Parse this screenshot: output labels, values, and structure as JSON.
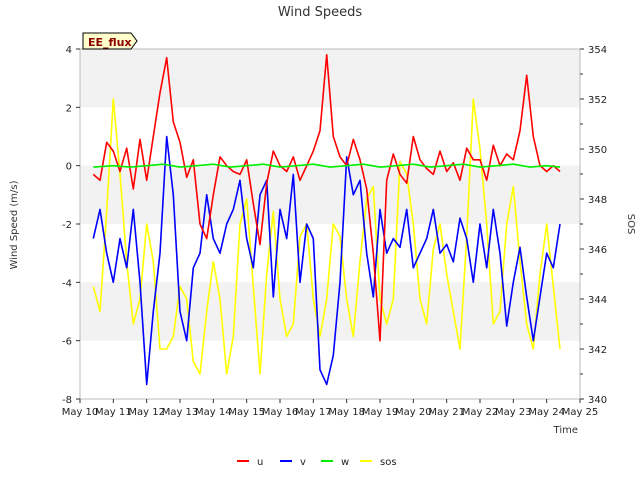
{
  "chart_data": {
    "type": "line",
    "title": "Wind Speeds",
    "badge": "EE_flux",
    "xlabel": "Time",
    "ylabel": "Wind Speed (m/s)",
    "y2label": "SOS",
    "ylim": [
      -8,
      4
    ],
    "y2lim": [
      340,
      354
    ],
    "yticks": [
      -8,
      -6,
      -4,
      -2,
      0,
      2,
      4
    ],
    "y2ticks": [
      340,
      342,
      344,
      346,
      348,
      350,
      352,
      354
    ],
    "x_dates": [
      "May 10",
      "May 11",
      "May 12",
      "May 13",
      "May 14",
      "May 15",
      "May 16",
      "May 17",
      "May 18",
      "May 19",
      "May 20",
      "May 21",
      "May 22",
      "May 23",
      "May 24",
      "May 25"
    ],
    "xlim": [
      10,
      25
    ],
    "grid": "horizontal bands",
    "legend_position": "bottom",
    "colors": {
      "u": "#ff0000",
      "v": "#0000ff",
      "w": "#00ee00",
      "sos": "#ffff00",
      "band": "#f2f2f2",
      "badge_bg": "#ffffcc"
    },
    "series": [
      {
        "name": "u",
        "axis": "left",
        "color": "#ff0000",
        "x": [
          10.4,
          10.6,
          10.8,
          11.0,
          11.2,
          11.4,
          11.6,
          11.8,
          12.0,
          12.2,
          12.4,
          12.6,
          12.8,
          13.0,
          13.2,
          13.4,
          13.6,
          13.8,
          14.0,
          14.2,
          14.4,
          14.6,
          14.8,
          15.0,
          15.2,
          15.4,
          15.6,
          15.8,
          16.0,
          16.2,
          16.4,
          16.6,
          16.8,
          17.0,
          17.2,
          17.4,
          17.6,
          17.8,
          18.0,
          18.2,
          18.4,
          18.6,
          18.8,
          19.0,
          19.2,
          19.4,
          19.6,
          19.8,
          20.0,
          20.2,
          20.4,
          20.6,
          20.8,
          21.0,
          21.2,
          21.4,
          21.6,
          21.8,
          22.0,
          22.2,
          22.4,
          22.6,
          22.8,
          23.0,
          23.2,
          23.4,
          23.6,
          23.8,
          24.0,
          24.2,
          24.4
        ],
        "y": [
          -0.3,
          -0.5,
          0.8,
          0.5,
          -0.2,
          0.6,
          -0.8,
          0.9,
          -0.5,
          1.0,
          2.5,
          3.7,
          1.5,
          0.8,
          -0.4,
          0.2,
          -2.0,
          -2.5,
          -1.0,
          0.3,
          0.0,
          -0.2,
          -0.3,
          0.2,
          -1.3,
          -2.7,
          -0.6,
          0.5,
          0.0,
          -0.2,
          0.3,
          -0.5,
          0.0,
          0.5,
          1.2,
          3.8,
          1.0,
          0.3,
          0.0,
          0.9,
          0.2,
          -0.8,
          -3.0,
          -6.0,
          -0.5,
          0.4,
          -0.3,
          -0.6,
          1.0,
          0.2,
          -0.1,
          -0.3,
          0.5,
          -0.2,
          0.1,
          -0.5,
          0.6,
          0.2,
          0.2,
          -0.5,
          0.7,
          0.0,
          0.4,
          0.2,
          1.2,
          3.1,
          1.0,
          0.0,
          -0.2,
          0.0,
          -0.2
        ]
      },
      {
        "name": "v",
        "axis": "left",
        "color": "#0000ff",
        "x": [
          10.4,
          10.6,
          10.8,
          11.0,
          11.2,
          11.4,
          11.6,
          11.8,
          12.0,
          12.2,
          12.4,
          12.6,
          12.8,
          13.0,
          13.2,
          13.4,
          13.6,
          13.8,
          14.0,
          14.2,
          14.4,
          14.6,
          14.8,
          15.0,
          15.2,
          15.4,
          15.6,
          15.8,
          16.0,
          16.2,
          16.4,
          16.6,
          16.8,
          17.0,
          17.2,
          17.4,
          17.6,
          17.8,
          18.0,
          18.2,
          18.4,
          18.6,
          18.8,
          19.0,
          19.2,
          19.4,
          19.6,
          19.8,
          20.0,
          20.2,
          20.4,
          20.6,
          20.8,
          21.0,
          21.2,
          21.4,
          21.6,
          21.8,
          22.0,
          22.2,
          22.4,
          22.6,
          22.8,
          23.0,
          23.2,
          23.4,
          23.6,
          23.8,
          24.0,
          24.2,
          24.4
        ],
        "y": [
          -2.5,
          -1.5,
          -3.0,
          -4.0,
          -2.5,
          -3.5,
          -1.5,
          -4.0,
          -7.5,
          -5.0,
          -3.0,
          1.0,
          -1.0,
          -5.0,
          -6.0,
          -3.5,
          -3.0,
          -1.0,
          -2.5,
          -3.0,
          -2.0,
          -1.5,
          -0.5,
          -2.5,
          -3.5,
          -1.0,
          -0.5,
          -4.5,
          -1.5,
          -2.5,
          -0.3,
          -4.0,
          -2.0,
          -2.5,
          -7.0,
          -7.5,
          -6.5,
          -4.0,
          0.3,
          -1.0,
          -0.5,
          -3.0,
          -4.5,
          -1.5,
          -3.0,
          -2.5,
          -2.8,
          -1.5,
          -3.5,
          -3.0,
          -2.5,
          -1.5,
          -3.0,
          -2.7,
          -3.3,
          -1.8,
          -2.5,
          -4.0,
          -2.0,
          -3.5,
          -1.5,
          -3.0,
          -5.5,
          -4.0,
          -2.8,
          -4.5,
          -6.0,
          -4.5,
          -3.0,
          -3.5,
          -2.0
        ]
      },
      {
        "name": "w",
        "axis": "left",
        "color": "#00ee00",
        "x": [
          10.4,
          11.0,
          11.5,
          12.0,
          12.5,
          13.0,
          13.5,
          14.0,
          14.5,
          15.0,
          15.5,
          16.0,
          16.5,
          17.0,
          17.5,
          18.0,
          18.5,
          19.0,
          19.5,
          20.0,
          20.5,
          21.0,
          21.5,
          22.0,
          22.5,
          23.0,
          23.5,
          24.0,
          24.4
        ],
        "y": [
          -0.05,
          0.0,
          -0.05,
          0.0,
          0.05,
          -0.05,
          0.0,
          0.05,
          -0.05,
          0.0,
          0.05,
          -0.05,
          0.0,
          0.05,
          -0.05,
          0.0,
          0.05,
          -0.05,
          0.0,
          0.05,
          -0.05,
          0.0,
          0.05,
          -0.05,
          0.0,
          0.05,
          -0.05,
          0.0,
          -0.05
        ]
      },
      {
        "name": "sos",
        "axis": "right",
        "color": "#ffff00",
        "x": [
          10.4,
          10.6,
          10.8,
          11.0,
          11.2,
          11.4,
          11.6,
          11.8,
          12.0,
          12.2,
          12.4,
          12.6,
          12.8,
          13.0,
          13.2,
          13.4,
          13.6,
          13.8,
          14.0,
          14.2,
          14.4,
          14.6,
          14.8,
          15.0,
          15.2,
          15.4,
          15.6,
          15.8,
          16.0,
          16.2,
          16.4,
          16.6,
          16.8,
          17.0,
          17.2,
          17.4,
          17.6,
          17.8,
          18.0,
          18.2,
          18.4,
          18.6,
          18.8,
          19.0,
          19.2,
          19.4,
          19.6,
          19.8,
          20.0,
          20.2,
          20.4,
          20.6,
          20.8,
          21.0,
          21.2,
          21.4,
          21.6,
          21.8,
          22.0,
          22.2,
          22.4,
          22.6,
          22.8,
          23.0,
          23.2,
          23.4,
          23.6,
          23.8,
          24.0,
          24.2,
          24.4
        ],
        "y": [
          344.5,
          343.5,
          347.5,
          352.0,
          349.0,
          345.5,
          343.0,
          344.0,
          347.0,
          345.5,
          342.0,
          342.0,
          342.5,
          344.5,
          344.0,
          341.5,
          341.0,
          343.5,
          345.5,
          344.0,
          341.0,
          342.5,
          347.0,
          348.0,
          344.5,
          341.0,
          345.0,
          347.5,
          344.0,
          342.5,
          343.0,
          346.5,
          347.0,
          344.0,
          342.5,
          344.0,
          347.0,
          346.5,
          344.0,
          342.5,
          345.5,
          348.0,
          348.5,
          344.0,
          343.0,
          344.0,
          349.5,
          349.0,
          347.0,
          344.0,
          343.0,
          346.0,
          347.0,
          345.0,
          343.5,
          342.0,
          346.5,
          352.0,
          350.0,
          347.0,
          343.0,
          343.5,
          347.0,
          348.5,
          345.5,
          343.0,
          342.0,
          345.0,
          347.0,
          344.5,
          342.0
        ]
      }
    ]
  }
}
